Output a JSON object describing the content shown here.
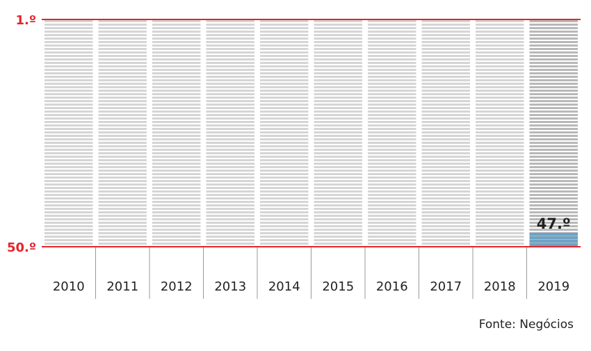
{
  "chart_data": {
    "type": "bar",
    "categories": [
      "2010",
      "2011",
      "2012",
      "2013",
      "2014",
      "2015",
      "2016",
      "2017",
      "2018",
      "2019"
    ],
    "series": [
      {
        "values": [
          null,
          null,
          null,
          null,
          null,
          null,
          null,
          null,
          null,
          47.0
        ]
      }
    ],
    "y_ticks": [
      "1.º",
      "50.º"
    ],
    "ylim": [
      1,
      50
    ],
    "y_inverted": true,
    "data_labels": [
      {
        "category": "2019",
        "text": "47.º"
      }
    ],
    "colors": {
      "axis_line": "#e3242b",
      "stripe": "#d5d5d5",
      "highlight_stripe": "#b8b8b8",
      "value_fill": "#6aa3c7",
      "separator": "#999999"
    },
    "source": "Fonte: Negócios"
  }
}
